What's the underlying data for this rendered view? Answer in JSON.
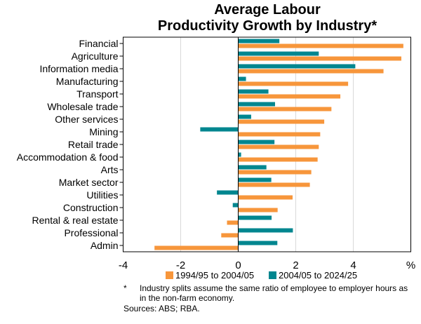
{
  "chart_data": {
    "type": "bar",
    "orientation": "horizontal",
    "title_line1": "Average Labour",
    "title_line2": "Productivity Growth by Industry*",
    "categories": [
      "Financial",
      "Agriculture",
      "Information media",
      "Manufacturing",
      "Transport",
      "Wholesale trade",
      "Other services",
      "Mining",
      "Retail trade",
      "Accommodation & food",
      "Arts",
      "Market sector",
      "Utilities",
      "Construction",
      "Rental & real estate",
      "Professional",
      "Admin"
    ],
    "series": [
      {
        "name": "1994/95 to 2004/05",
        "color": "#F7963B",
        "values": [
          5.74,
          5.67,
          5.05,
          3.82,
          3.55,
          3.24,
          2.99,
          2.85,
          2.8,
          2.76,
          2.54,
          2.49,
          1.89,
          1.37,
          -0.39,
          -0.59,
          -2.91
        ]
      },
      {
        "name": "2004/05 to 2024/25",
        "color": "#00868F",
        "values": [
          1.43,
          2.8,
          4.07,
          0.27,
          1.05,
          1.28,
          0.45,
          -1.32,
          1.26,
          0.1,
          0.98,
          1.15,
          -0.74,
          -0.19,
          1.16,
          1.9,
          1.36
        ]
      }
    ],
    "xlim": [
      -4,
      6
    ],
    "xticks": [
      "-4",
      "-2",
      "0",
      "2",
      "4",
      "%"
    ],
    "grid": true,
    "legend": "bottom"
  },
  "footnote_marker": "*",
  "footnote_text_1": "Industry splits assume the same ratio of employee to employer hours as",
  "footnote_text_2": "in the non-farm economy.",
  "sources": "Sources:  ABS; RBA."
}
